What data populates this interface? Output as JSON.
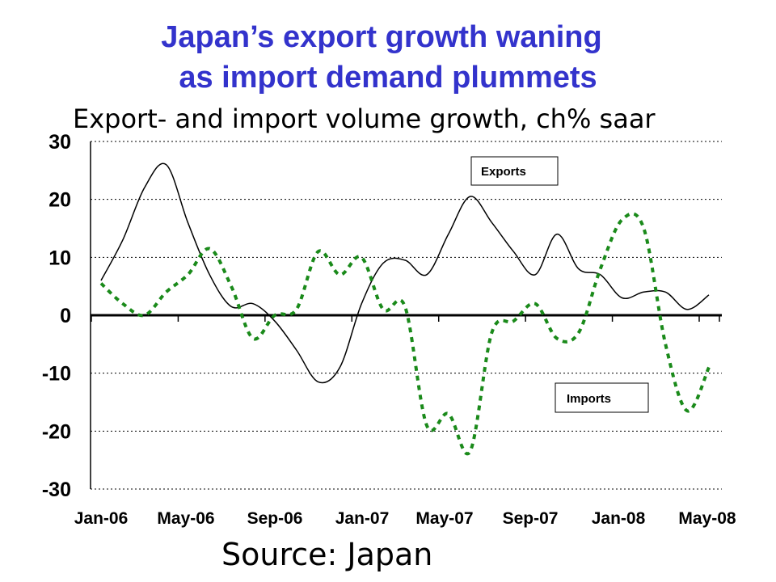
{
  "title_line1": "Japan’s export growth waning",
  "title_line2": "as import demand plummets",
  "subtitle": "Export- and import volume growth, ch% saar",
  "source": "Source: Japan",
  "colors": {
    "title": "#3333cc",
    "exports": "#000000",
    "imports": "#1a8a1a",
    "grid": "#000000"
  },
  "chart_data": {
    "type": "line",
    "title": "Japan’s export growth waning as import demand plummets",
    "subtitle": "Export- and import volume growth, ch% saar",
    "xlabel": "",
    "ylabel": "",
    "ylim": [
      -30,
      30
    ],
    "yticks": [
      "30",
      "20",
      "10",
      "0",
      "-10",
      "-20",
      "-30"
    ],
    "xtick_labels": [
      "Jan-06",
      "May-06",
      "Sep-06",
      "Jan-07",
      "May-07",
      "Sep-07",
      "Jan-08",
      "May-08"
    ],
    "grid": "horizontal dotted",
    "x": [
      "Jan-06",
      "Feb-06",
      "Mar-06",
      "Apr-06",
      "May-06",
      "Jun-06",
      "Jul-06",
      "Aug-06",
      "Sep-06",
      "Oct-06",
      "Nov-06",
      "Dec-06",
      "Jan-07",
      "Feb-07",
      "Mar-07",
      "Apr-07",
      "May-07",
      "Jun-07",
      "Jul-07",
      "Aug-07",
      "Sep-07",
      "Oct-07",
      "Nov-07",
      "Dec-07",
      "Jan-08",
      "Feb-08",
      "Mar-08",
      "Apr-08",
      "May-08"
    ],
    "series": [
      {
        "name": "Exports",
        "style": "solid",
        "values": [
          6,
          13,
          22,
          26,
          16,
          7,
          1.5,
          2,
          -1,
          -6,
          -11.5,
          -9,
          2,
          9,
          9.5,
          7,
          14,
          20.5,
          16,
          11,
          7,
          14,
          8,
          7,
          3,
          4,
          4,
          1,
          3.5
        ]
      },
      {
        "name": "Imports",
        "style": "dashed",
        "values": [
          5.5,
          2,
          0,
          4,
          7,
          11.5,
          5,
          -4,
          0,
          1,
          11,
          7,
          10,
          1,
          1.5,
          -19,
          -17,
          -23.5,
          -3,
          -1,
          2,
          -4,
          -3,
          8,
          16.5,
          15,
          -5,
          -16.5,
          -9
        ]
      }
    ],
    "annotations": [
      "Exports",
      "Imports"
    ]
  }
}
